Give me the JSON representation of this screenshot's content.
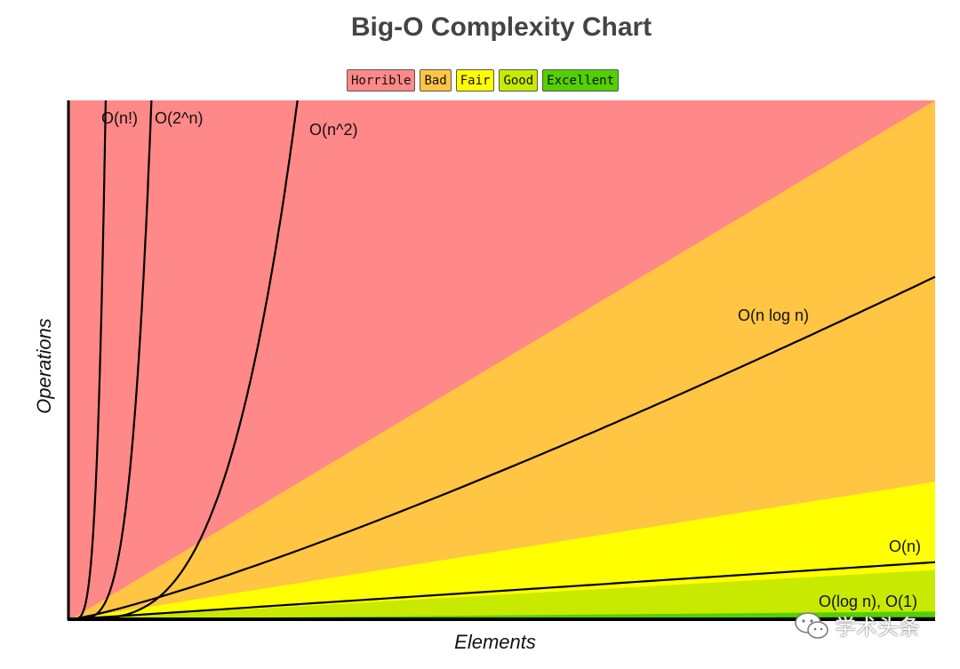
{
  "chart_data": {
    "type": "area",
    "title": "Big-O Complexity Chart",
    "xlabel": "Elements",
    "ylabel": "Operations",
    "xlim": [
      0,
      100
    ],
    "ylim": [
      0,
      100
    ],
    "legend": {
      "placement": "top-center",
      "entries": [
        {
          "label": "Horrible",
          "color": "#ff8888"
        },
        {
          "label": "Bad",
          "color": "#ffc543"
        },
        {
          "label": "Fair",
          "color": "#ffff00"
        },
        {
          "label": "Good",
          "color": "#c8ea00"
        },
        {
          "label": "Excellent",
          "color": "#53d000"
        }
      ]
    },
    "regions": [
      {
        "band": "Horrible",
        "color": "#ff8888",
        "right_edge_top": 100
      },
      {
        "band": "Bad",
        "color": "#ffc543",
        "right_edge_top": 100
      },
      {
        "band": "Fair",
        "color": "#ffff00",
        "right_edge_top": 26.5
      },
      {
        "band": "Good",
        "color": "#c8ea00",
        "right_edge_top": 9.5
      },
      {
        "band": "Excellent",
        "color": "#53d000",
        "right_edge_top": 1.5
      }
    ],
    "curves": [
      {
        "label": "O(n!)",
        "kind": "factorial"
      },
      {
        "label": "O(2^n)",
        "kind": "exponential"
      },
      {
        "label": "O(n^2)",
        "kind": "quadratic"
      },
      {
        "label": "O(n log n)",
        "kind": "nlogn"
      },
      {
        "label": "O(n)",
        "kind": "linear"
      },
      {
        "label": "O(log n), O(1)",
        "kind": "log"
      }
    ]
  },
  "watermark": {
    "text": "学术头条"
  }
}
